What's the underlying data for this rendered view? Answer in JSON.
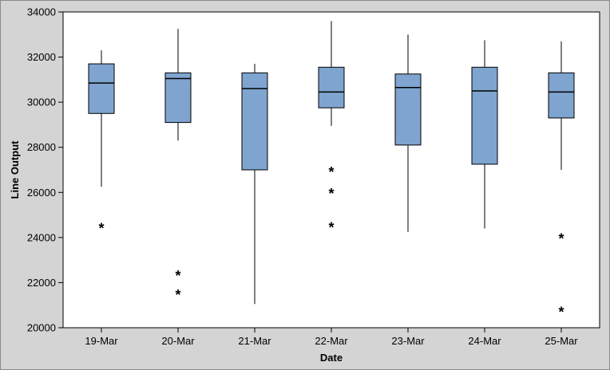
{
  "chart_data": {
    "type": "boxplot",
    "xlabel": "Date",
    "ylabel": "Line Output",
    "ylim": [
      20000,
      34000
    ],
    "yticks": [
      20000,
      22000,
      24000,
      26000,
      28000,
      30000,
      32000,
      34000
    ],
    "grid": false,
    "colors": {
      "box_fill": "#7fa4d0",
      "plot_bg": "#ffffff",
      "panel_bg": "#d4d4d4"
    },
    "outlier_symbol": "*",
    "categories": [
      "19-Mar",
      "20-Mar",
      "21-Mar",
      "22-Mar",
      "23-Mar",
      "24-Mar",
      "25-Mar"
    ],
    "boxes": [
      {
        "category": "19-Mar",
        "whisker_low": 26250,
        "q1": 29500,
        "median": 30850,
        "q3": 31700,
        "whisker_high": 32300,
        "outliers": [
          24500
        ]
      },
      {
        "category": "20-Mar",
        "whisker_low": 28300,
        "q1": 29100,
        "median": 31050,
        "q3": 31300,
        "whisker_high": 33250,
        "outliers": [
          22400,
          21550
        ]
      },
      {
        "category": "21-Mar",
        "whisker_low": 21050,
        "q1": 27000,
        "median": 30600,
        "q3": 31300,
        "whisker_high": 31700,
        "outliers": []
      },
      {
        "category": "22-Mar",
        "whisker_low": 28950,
        "q1": 29750,
        "median": 30450,
        "q3": 31550,
        "whisker_high": 33600,
        "outliers": [
          27000,
          26050,
          24550
        ]
      },
      {
        "category": "23-Mar",
        "whisker_low": 24250,
        "q1": 28100,
        "median": 30650,
        "q3": 31250,
        "whisker_high": 33000,
        "outliers": []
      },
      {
        "category": "24-Mar",
        "whisker_low": 24400,
        "q1": 27250,
        "median": 30500,
        "q3": 31550,
        "whisker_high": 32750,
        "outliers": []
      },
      {
        "category": "25-Mar",
        "whisker_low": 27000,
        "q1": 29300,
        "median": 30450,
        "q3": 31300,
        "whisker_high": 32700,
        "outliers": [
          24050,
          20800
        ]
      }
    ]
  }
}
